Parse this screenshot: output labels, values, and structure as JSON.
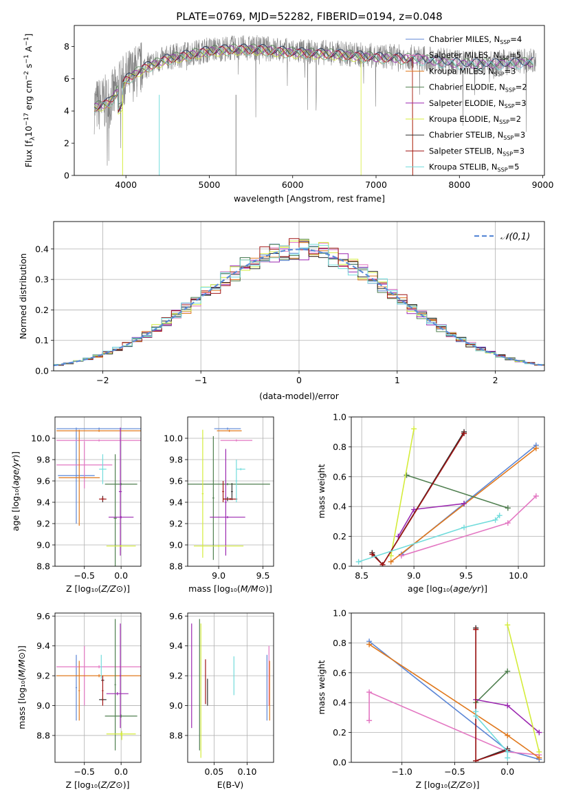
{
  "chart_data": [
    {
      "id": "spectrum",
      "type": "line",
      "title": "PLATE=0769, MJD=52282, FIBERID=0194, z=0.048",
      "xlabel": "wavelength [Angstrom, rest frame]",
      "ylabel": "Flux [f_λ 10^-17 erg cm^-2 s^-1 A^-1]",
      "xlim": [
        3380,
        9020
      ],
      "ylim": [
        0,
        9.3
      ],
      "xticks": [
        4000,
        5000,
        6000,
        7000,
        8000,
        9000
      ],
      "yticks": [
        0,
        2,
        4,
        6,
        8
      ],
      "data_color": "#808080",
      "continuum_x": [
        3620,
        3800,
        4000,
        4200,
        4500,
        4800,
        5000,
        5300,
        5600,
        6000,
        6500,
        7000,
        7500,
        8000,
        8500,
        8900
      ],
      "continuum_y": [
        4.3,
        4.6,
        6.0,
        6.7,
        7.3,
        7.6,
        7.8,
        7.9,
        7.9,
        7.7,
        7.6,
        7.4,
        7.3,
        7.0,
        7.0,
        7.1
      ],
      "legend": [
        {
          "label": "Chabrier MILES, N",
          "sub": "SSP",
          "suffix": "=4",
          "color": "#5b86d6"
        },
        {
          "label": "Salpeter MILES, N",
          "sub": "SSP",
          "suffix": "=5",
          "color": "#e377c2"
        },
        {
          "label": "Kroupa MILES, N",
          "sub": "SSP",
          "suffix": "=3",
          "color": "#e0781c"
        },
        {
          "label": "Chabrier ELODIE, N",
          "sub": "SSP",
          "suffix": "=2",
          "color": "#4f7f4f"
        },
        {
          "label": "Salpeter ELODIE, N",
          "sub": "SSP",
          "suffix": "=3",
          "color": "#9b27b0"
        },
        {
          "label": "Kroupa ELODIE, N",
          "sub": "SSP",
          "suffix": "=2",
          "color": "#d4ec3a"
        },
        {
          "label": "Chabrier STELIB, N",
          "sub": "SSP",
          "suffix": "=3",
          "color": "#303030"
        },
        {
          "label": "Salpeter STELIB, N",
          "sub": "SSP",
          "suffix": "=3",
          "color": "#a01414"
        },
        {
          "label": "Kroupa STELIB, N",
          "sub": "SSP",
          "suffix": "=5",
          "color": "#72dcdc"
        }
      ]
    },
    {
      "id": "residuals",
      "type": "line",
      "xlabel": "(data-model)/error",
      "ylabel": "Normed distribution",
      "xlim": [
        -2.5,
        2.5
      ],
      "ylim": [
        0,
        0.49
      ],
      "xticks": [
        -2,
        -1,
        0,
        1,
        2
      ],
      "yticks": [
        0.0,
        0.1,
        0.2,
        0.3,
        0.4
      ],
      "legend": {
        "label": "𝒩(0,1)",
        "color": "#5a8ad6"
      },
      "bin_width": 0.1
    },
    {
      "id": "age_vs_Z",
      "type": "scatter",
      "xlabel": "Z [log10(Z/Z⊙)]",
      "ylabel": "age [log10(age/yr)]",
      "xlim": [
        -0.9,
        0.27
      ],
      "ylim": [
        8.8,
        10.2
      ],
      "xticks": [
        -0.5,
        0.0
      ],
      "yticks": [
        8.8,
        9.0,
        9.2,
        9.4,
        9.6,
        9.8,
        10.0
      ],
      "series": [
        {
          "color": "#5b86d6",
          "points": [
            {
              "x": -0.61,
              "y": 9.65,
              "xe": 0.25,
              "ye": 0.45
            },
            {
              "x": -0.3,
              "y": 10.09,
              "xe": 0.58,
              "ye": 0.01
            }
          ]
        },
        {
          "color": "#e377c2",
          "points": [
            {
              "x": -0.5,
              "y": 9.75,
              "xe": 0.38,
              "ye": 0.22
            },
            {
              "x": -0.3,
              "y": 9.98,
              "xe": 0.58,
              "ye": 0.01
            }
          ]
        },
        {
          "color": "#e0781c",
          "points": [
            {
              "x": -0.57,
              "y": 9.63,
              "xe": 0.28,
              "ye": 0.45
            },
            {
              "x": -0.3,
              "y": 10.07,
              "xe": 0.58,
              "ye": 0.01
            }
          ]
        },
        {
          "color": "#4f7f4f",
          "points": [
            {
              "x": -0.08,
              "y": 9.25,
              "xe": 0.02,
              "ye": 0.6
            },
            {
              "x": 0.0,
              "y": 9.57,
              "xe": 0.22,
              "ye": 0.01
            }
          ]
        },
        {
          "color": "#9b27b0",
          "points": [
            {
              "x": -0.01,
              "y": 9.5,
              "xe": 0.02,
              "ye": 0.6
            },
            {
              "x": 0.0,
              "y": 9.26,
              "xe": 0.17,
              "ye": 0.01
            }
          ]
        },
        {
          "color": "#d4ec3a",
          "points": [
            {
              "x": 0.0,
              "y": 8.99,
              "xe": 0.2,
              "ye": 0.01
            }
          ]
        },
        {
          "color": "#303030",
          "points": [
            {
              "x": -0.25,
              "y": 9.43,
              "xe": 0.02,
              "ye": 0.03
            }
          ]
        },
        {
          "color": "#a01414",
          "points": [
            {
              "x": -0.25,
              "y": 9.43,
              "xe": 0.05,
              "ye": 0.02
            }
          ]
        },
        {
          "color": "#72dcdc",
          "points": [
            {
              "x": -0.25,
              "y": 9.71,
              "xe": 0.05,
              "ye": 0.14
            }
          ]
        }
      ]
    },
    {
      "id": "age_vs_mass",
      "type": "scatter",
      "xlabel": "mass [log10(M/M⊙)]",
      "ylabel": "",
      "xlim": [
        8.65,
        9.62
      ],
      "ylim": [
        8.8,
        10.2
      ],
      "xticks": [
        9.0,
        9.5
      ],
      "yticks": [
        8.8,
        9.0,
        9.2,
        9.4,
        9.6,
        9.8,
        10.0
      ],
      "series": [
        {
          "color": "#5b86d6",
          "points": [
            {
              "x": 9.1,
              "y": 10.09,
              "xe": 0.15,
              "ye": 0.01
            }
          ]
        },
        {
          "color": "#e377c2",
          "points": [
            {
              "x": 9.2,
              "y": 9.98,
              "xe": 0.18,
              "ye": 0.01
            }
          ]
        },
        {
          "color": "#e0781c",
          "points": [
            {
              "x": 9.12,
              "y": 10.07,
              "xe": 0.14,
              "ye": 0.01
            }
          ]
        },
        {
          "color": "#4f7f4f",
          "points": [
            {
              "x": 9.1,
              "y": 9.57,
              "xe": 0.48,
              "ye": 0.01
            },
            {
              "x": 8.94,
              "y": 9.44,
              "xe": 0.01,
              "ye": 0.58
            }
          ]
        },
        {
          "color": "#9b27b0",
          "points": [
            {
              "x": 9.1,
              "y": 9.26,
              "xe": 0.2,
              "ye": 0.01
            },
            {
              "x": 9.08,
              "y": 9.4,
              "xe": 0.01,
              "ye": 0.5
            }
          ]
        },
        {
          "color": "#d4ec3a",
          "points": [
            {
              "x": 9.0,
              "y": 8.99,
              "xe": 0.28,
              "ye": 0.01
            },
            {
              "x": 8.82,
              "y": 9.48,
              "xe": 0.01,
              "ye": 0.6
            }
          ]
        },
        {
          "color": "#303030",
          "points": [
            {
              "x": 9.1,
              "y": 9.43,
              "xe": 0.05,
              "ye": 0.02
            },
            {
              "x": 9.15,
              "y": 9.5,
              "xe": 0.01,
              "ye": 0.08
            }
          ]
        },
        {
          "color": "#a01414",
          "points": [
            {
              "x": 9.13,
              "y": 9.43,
              "xe": 0.08,
              "ye": 0.01
            },
            {
              "x": 9.05,
              "y": 9.5,
              "xe": 0.01,
              "ye": 0.1
            }
          ]
        },
        {
          "color": "#72dcdc",
          "points": [
            {
              "x": 9.25,
              "y": 9.71,
              "xe": 0.05,
              "ye": 0.01
            },
            {
              "x": 9.2,
              "y": 9.6,
              "xe": 0.01,
              "ye": 0.2
            }
          ]
        }
      ]
    },
    {
      "id": "weight_vs_age",
      "type": "line",
      "xlabel": "age [log10(age/yr)]",
      "ylabel": "mass weight",
      "xlim": [
        8.4,
        10.25
      ],
      "ylim": [
        0,
        1.0
      ],
      "xticks": [
        8.5,
        9.0,
        9.5,
        10.0
      ],
      "yticks": [
        0.0,
        0.2,
        0.4,
        0.6,
        0.8,
        1.0
      ],
      "series": [
        {
          "color": "#5b86d6",
          "x": [
            8.88,
            9.48,
            10.17
          ],
          "y": [
            0.08,
            0.42,
            0.81
          ]
        },
        {
          "color": "#e377c2",
          "x": [
            8.88,
            9.9,
            10.17
          ],
          "y": [
            0.07,
            0.29,
            0.47
          ]
        },
        {
          "color": "#e0781c",
          "x": [
            8.78,
            10.17
          ],
          "y": [
            0.03,
            0.79
          ]
        },
        {
          "color": "#4f7f4f",
          "x": [
            8.93,
            9.9
          ],
          "y": [
            0.61,
            0.39
          ]
        },
        {
          "color": "#9b27b0",
          "x": [
            8.85,
            9.0,
            9.48
          ],
          "y": [
            0.2,
            0.38,
            0.42
          ]
        },
        {
          "color": "#d4ec3a",
          "x": [
            8.78,
            9.0
          ],
          "y": [
            0.07,
            0.92
          ]
        },
        {
          "color": "#303030",
          "x": [
            8.6,
            8.7,
            9.48
          ],
          "y": [
            0.09,
            0.01,
            0.9
          ]
        },
        {
          "color": "#a01414",
          "x": [
            8.6,
            8.7,
            9.48
          ],
          "y": [
            0.08,
            0.01,
            0.89
          ]
        },
        {
          "color": "#72dcdc",
          "x": [
            8.47,
            9.48,
            9.78,
            9.82
          ],
          "y": [
            0.03,
            0.26,
            0.31,
            0.34
          ]
        }
      ]
    },
    {
      "id": "mass_vs_Z",
      "type": "scatter",
      "xlabel": "Z [log10(Z/Z⊙)]",
      "ylabel": "mass [log10(M/M⊙)]",
      "xlim": [
        -0.9,
        0.27
      ],
      "ylim": [
        8.62,
        9.62
      ],
      "xticks": [
        -0.5,
        0.0
      ],
      "yticks": [
        8.8,
        9.0,
        9.2,
        9.4,
        9.6
      ],
      "series": [
        {
          "color": "#5b86d6",
          "points": [
            {
              "x": -0.61,
              "y": 9.12,
              "xe": 0.01,
              "ye": 0.22
            }
          ]
        },
        {
          "color": "#e377c2",
          "points": [
            {
              "x": -0.3,
              "y": 9.26,
              "xe": 0.58,
              "ye": 0.01
            },
            {
              "x": -0.5,
              "y": 9.2,
              "xe": 0.01,
              "ye": 0.2
            }
          ]
        },
        {
          "color": "#e0781c",
          "points": [
            {
              "x": -0.3,
              "y": 9.2,
              "xe": 0.58,
              "ye": 0.01
            },
            {
              "x": -0.57,
              "y": 9.1,
              "xe": 0.01,
              "ye": 0.2
            }
          ]
        },
        {
          "color": "#4f7f4f",
          "points": [
            {
              "x": 0.0,
              "y": 8.93,
              "xe": 0.22,
              "ye": 0.01
            },
            {
              "x": -0.08,
              "y": 9.14,
              "xe": 0.01,
              "ye": 0.44
            }
          ]
        },
        {
          "color": "#9b27b0",
          "points": [
            {
              "x": -0.05,
              "y": 9.08,
              "xe": 0.15,
              "ye": 0.01
            },
            {
              "x": -0.01,
              "y": 9.2,
              "xe": 0.01,
              "ye": 0.35
            }
          ]
        },
        {
          "color": "#d4ec3a",
          "points": [
            {
              "x": 0.0,
              "y": 8.81,
              "xe": 0.2,
              "ye": 0.01
            },
            {
              "x": 0.01,
              "y": 8.8,
              "xe": 0.01,
              "ye": 0.03
            }
          ]
        },
        {
          "color": "#303030",
          "points": [
            {
              "x": -0.25,
              "y": 9.17,
              "xe": 0.02,
              "ye": 0.01
            },
            {
              "x": -0.25,
              "y": 9.04,
              "xe": 0.05,
              "ye": 0.01
            }
          ]
        },
        {
          "color": "#a01414",
          "points": [
            {
              "x": -0.25,
              "y": 9.1,
              "xe": 0.01,
              "ye": 0.1
            }
          ]
        },
        {
          "color": "#72dcdc",
          "points": [
            {
              "x": -0.27,
              "y": 9.26,
              "xe": 0.01,
              "ye": 0.08
            }
          ]
        }
      ]
    },
    {
      "id": "mass_vs_ebv",
      "type": "scatter",
      "xlabel": "E(B-V)",
      "ylabel": "",
      "xlim": [
        0.01,
        0.14
      ],
      "ylim": [
        8.62,
        9.62
      ],
      "xticks": [
        0.05,
        0.1
      ],
      "xticklabels": [
        "0.05",
        "0.10"
      ],
      "yticks": [
        8.8,
        9.0,
        9.2,
        9.4,
        9.6
      ],
      "series": [
        {
          "color": "#5b86d6",
          "points": [
            {
              "x": 0.13,
              "y": 9.12,
              "xe": 0.0,
              "ye": 0.22
            }
          ]
        },
        {
          "color": "#e377c2",
          "points": [
            {
              "x": 0.133,
              "y": 9.2,
              "xe": 0.0,
              "ye": 0.2
            }
          ]
        },
        {
          "color": "#e0781c",
          "points": [
            {
              "x": 0.134,
              "y": 9.1,
              "xe": 0.0,
              "ye": 0.2
            }
          ]
        },
        {
          "color": "#4f7f4f",
          "points": [
            {
              "x": 0.028,
              "y": 9.14,
              "xe": 0.0,
              "ye": 0.44
            }
          ]
        },
        {
          "color": "#9b27b0",
          "points": [
            {
              "x": 0.016,
              "y": 9.2,
              "xe": 0.0,
              "ye": 0.35
            }
          ]
        },
        {
          "color": "#d4ec3a",
          "points": [
            {
              "x": 0.03,
              "y": 9.1,
              "xe": 0.0,
              "ye": 0.45
            }
          ]
        },
        {
          "color": "#303030",
          "points": [
            {
              "x": 0.04,
              "y": 9.09,
              "xe": 0.0,
              "ye": 0.09
            }
          ]
        },
        {
          "color": "#a01414",
          "points": [
            {
              "x": 0.037,
              "y": 9.16,
              "xe": 0.0,
              "ye": 0.15
            }
          ]
        },
        {
          "color": "#72dcdc",
          "points": [
            {
              "x": 0.08,
              "y": 9.2,
              "xe": 0.0,
              "ye": 0.13
            }
          ]
        }
      ]
    },
    {
      "id": "weight_vs_Z",
      "type": "line",
      "xlabel": "Z [log10(Z/Z⊙)]",
      "ylabel": "mass weight",
      "xlim": [
        -1.48,
        0.35
      ],
      "ylim": [
        0,
        1.0
      ],
      "xticks": [
        -1.0,
        -0.5,
        0.0
      ],
      "yticks": [
        0.0,
        0.2,
        0.4,
        0.6,
        0.8,
        1.0
      ],
      "series": [
        {
          "color": "#5b86d6",
          "x": [
            -1.31,
            0.0,
            0.3
          ],
          "y": [
            0.81,
            0.08,
            0.02
          ]
        },
        {
          "color": "#e377c2",
          "x": [
            -1.31,
            -1.31,
            0.0,
            0.3
          ],
          "y": [
            0.28,
            0.47,
            0.07,
            0.05
          ]
        },
        {
          "color": "#e0781c",
          "x": [
            -1.31,
            0.0,
            0.3
          ],
          "y": [
            0.79,
            0.18,
            0.03
          ]
        },
        {
          "color": "#4f7f4f",
          "x": [
            -0.3,
            0.0
          ],
          "y": [
            0.4,
            0.61
          ]
        },
        {
          "color": "#9b27b0",
          "x": [
            -0.3,
            0.0,
            0.3
          ],
          "y": [
            0.42,
            0.38,
            0.2
          ]
        },
        {
          "color": "#d4ec3a",
          "x": [
            0.0,
            0.3
          ],
          "y": [
            0.92,
            0.07
          ]
        },
        {
          "color": "#303030",
          "x": [
            -0.3,
            -0.3,
            0.0
          ],
          "y": [
            0.9,
            0.01,
            0.09
          ]
        },
        {
          "color": "#a01414",
          "x": [
            -0.3,
            -0.3,
            0.0
          ],
          "y": [
            0.89,
            0.01,
            0.08
          ]
        },
        {
          "color": "#72dcdc",
          "x": [
            -0.3,
            -0.3,
            0.0,
            0.0
          ],
          "y": [
            0.34,
            0.31,
            0.07,
            0.03
          ]
        }
      ]
    }
  ]
}
